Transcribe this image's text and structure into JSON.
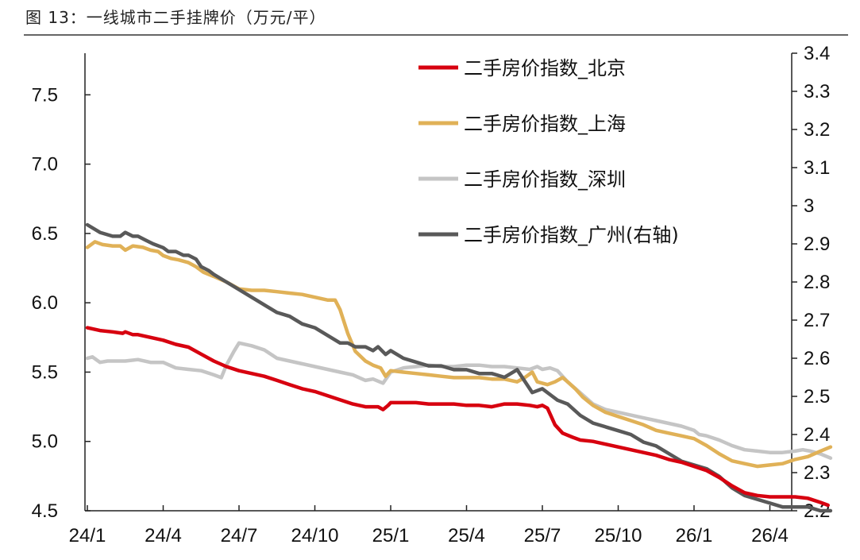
{
  "caption": "图 13：一线城市二手挂牌价（万元/平）",
  "chart_data": {
    "type": "line",
    "title": "图 13：一线城市二手挂牌价（万元/平）",
    "x_ticks": [
      "24/1",
      "24/4",
      "24/7",
      "24/10",
      "25/1",
      "25/4",
      "25/7",
      "25/10",
      "26/1",
      "26/4"
    ],
    "x_range": [
      0,
      28
    ],
    "y_left_range": [
      4.5,
      7.8
    ],
    "y_left_ticks": [
      "4.5",
      "5.0",
      "5.5",
      "6.0",
      "6.5",
      "7.0",
      "7.5"
    ],
    "y_right_range": [
      2.2,
      3.4
    ],
    "y_right_ticks": [
      "2.2",
      "2.3",
      "2.4",
      "2.5",
      "2.6",
      "2.7",
      "2.8",
      "2.9",
      "3",
      "3.1",
      "3.2",
      "3.3",
      "3.4"
    ],
    "legend_position": "top-right",
    "series": [
      {
        "name": "二手房价指数_北京",
        "axis": "left",
        "color": "#d7000f",
        "points": [
          [
            0,
            5.82
          ],
          [
            0.5,
            5.8
          ],
          [
            1,
            5.79
          ],
          [
            1.4,
            5.78
          ],
          [
            1.5,
            5.79
          ],
          [
            1.8,
            5.77
          ],
          [
            2,
            5.77
          ],
          [
            2.5,
            5.75
          ],
          [
            3,
            5.73
          ],
          [
            3.5,
            5.7
          ],
          [
            4,
            5.68
          ],
          [
            4.5,
            5.63
          ],
          [
            5,
            5.58
          ],
          [
            5.5,
            5.54
          ],
          [
            6,
            5.51
          ],
          [
            6.5,
            5.49
          ],
          [
            7,
            5.47
          ],
          [
            7.5,
            5.44
          ],
          [
            8,
            5.41
          ],
          [
            8.5,
            5.38
          ],
          [
            9,
            5.36
          ],
          [
            9.5,
            5.33
          ],
          [
            10,
            5.3
          ],
          [
            10.5,
            5.27
          ],
          [
            11,
            5.25
          ],
          [
            11.5,
            5.25
          ],
          [
            11.7,
            5.23
          ],
          [
            11.9,
            5.26
          ],
          [
            12,
            5.28
          ],
          [
            12.5,
            5.28
          ],
          [
            13,
            5.28
          ],
          [
            13.5,
            5.27
          ],
          [
            14,
            5.27
          ],
          [
            14.5,
            5.27
          ],
          [
            15,
            5.26
          ],
          [
            15.5,
            5.26
          ],
          [
            16,
            5.25
          ],
          [
            16.5,
            5.27
          ],
          [
            17,
            5.27
          ],
          [
            17.5,
            5.26
          ],
          [
            17.8,
            5.25
          ],
          [
            18,
            5.26
          ],
          [
            18.2,
            5.24
          ],
          [
            18.5,
            5.12
          ],
          [
            18.8,
            5.06
          ],
          [
            19.2,
            5.03
          ],
          [
            19.5,
            5.01
          ],
          [
            20,
            5.0
          ],
          [
            20.5,
            4.98
          ],
          [
            21,
            4.96
          ],
          [
            21.5,
            4.94
          ],
          [
            22,
            4.92
          ],
          [
            22.5,
            4.9
          ],
          [
            23,
            4.87
          ],
          [
            23.5,
            4.85
          ],
          [
            24,
            4.82
          ],
          [
            24.5,
            4.79
          ],
          [
            25,
            4.74
          ],
          [
            25.5,
            4.68
          ],
          [
            26,
            4.63
          ],
          [
            26.5,
            4.61
          ],
          [
            27,
            4.6
          ],
          [
            27.5,
            4.6
          ],
          [
            28,
            4.6
          ],
          [
            28.5,
            4.59
          ],
          [
            29,
            4.56
          ],
          [
            29.3,
            4.54
          ]
        ]
      },
      {
        "name": "二手房价指数_上海",
        "axis": "left",
        "color": "#e0b157",
        "points": [
          [
            0,
            6.4
          ],
          [
            0.3,
            6.44
          ],
          [
            0.6,
            6.42
          ],
          [
            1,
            6.41
          ],
          [
            1.3,
            6.41
          ],
          [
            1.5,
            6.38
          ],
          [
            1.8,
            6.41
          ],
          [
            2.2,
            6.4
          ],
          [
            2.5,
            6.38
          ],
          [
            2.8,
            6.37
          ],
          [
            3,
            6.34
          ],
          [
            3.3,
            6.32
          ],
          [
            3.6,
            6.31
          ],
          [
            4,
            6.29
          ],
          [
            4.3,
            6.26
          ],
          [
            4.6,
            6.22
          ],
          [
            5,
            6.19
          ],
          [
            5.5,
            6.15
          ],
          [
            6,
            6.1
          ],
          [
            6.5,
            6.09
          ],
          [
            7,
            6.09
          ],
          [
            7.5,
            6.08
          ],
          [
            8,
            6.07
          ],
          [
            8.5,
            6.06
          ],
          [
            9,
            6.04
          ],
          [
            9.5,
            6.02
          ],
          [
            9.8,
            6.02
          ],
          [
            10,
            5.95
          ],
          [
            10.3,
            5.78
          ],
          [
            10.6,
            5.65
          ],
          [
            11,
            5.58
          ],
          [
            11.3,
            5.55
          ],
          [
            11.6,
            5.53
          ],
          [
            11.8,
            5.47
          ],
          [
            12,
            5.51
          ],
          [
            12.5,
            5.5
          ],
          [
            13,
            5.49
          ],
          [
            13.5,
            5.48
          ],
          [
            14,
            5.47
          ],
          [
            14.5,
            5.46
          ],
          [
            15,
            5.46
          ],
          [
            15.5,
            5.46
          ],
          [
            16,
            5.45
          ],
          [
            16.5,
            5.45
          ],
          [
            17,
            5.43
          ],
          [
            17.3,
            5.46
          ],
          [
            17.6,
            5.5
          ],
          [
            17.8,
            5.43
          ],
          [
            18.2,
            5.41
          ],
          [
            18.5,
            5.43
          ],
          [
            18.8,
            5.46
          ],
          [
            19,
            5.43
          ],
          [
            19.3,
            5.38
          ],
          [
            19.6,
            5.32
          ],
          [
            20,
            5.26
          ],
          [
            20.5,
            5.21
          ],
          [
            21,
            5.18
          ],
          [
            21.5,
            5.15
          ],
          [
            22,
            5.12
          ],
          [
            22.5,
            5.08
          ],
          [
            23,
            5.06
          ],
          [
            23.5,
            5.04
          ],
          [
            24,
            5.02
          ],
          [
            24.5,
            4.97
          ],
          [
            25,
            4.91
          ],
          [
            25.5,
            4.86
          ],
          [
            26,
            4.84
          ],
          [
            26.5,
            4.82
          ],
          [
            27,
            4.83
          ],
          [
            27.5,
            4.84
          ],
          [
            28,
            4.87
          ],
          [
            28.5,
            4.89
          ],
          [
            29,
            4.93
          ],
          [
            29.4,
            4.96
          ]
        ]
      },
      {
        "name": "二手房价指数_深圳",
        "axis": "left",
        "color": "#c5c5c5",
        "points": [
          [
            0,
            5.6
          ],
          [
            0.2,
            5.61
          ],
          [
            0.5,
            5.57
          ],
          [
            0.8,
            5.58
          ],
          [
            1,
            5.58
          ],
          [
            1.5,
            5.58
          ],
          [
            2,
            5.59
          ],
          [
            2.5,
            5.57
          ],
          [
            3,
            5.57
          ],
          [
            3.5,
            5.53
          ],
          [
            4,
            5.52
          ],
          [
            4.5,
            5.51
          ],
          [
            5,
            5.48
          ],
          [
            5.3,
            5.46
          ],
          [
            5.5,
            5.55
          ],
          [
            5.8,
            5.65
          ],
          [
            6,
            5.71
          ],
          [
            6.5,
            5.69
          ],
          [
            7,
            5.66
          ],
          [
            7.5,
            5.6
          ],
          [
            8,
            5.58
          ],
          [
            8.5,
            5.56
          ],
          [
            9,
            5.54
          ],
          [
            9.5,
            5.52
          ],
          [
            10,
            5.5
          ],
          [
            10.5,
            5.48
          ],
          [
            11,
            5.44
          ],
          [
            11.3,
            5.45
          ],
          [
            11.7,
            5.42
          ],
          [
            12,
            5.5
          ],
          [
            12.5,
            5.53
          ],
          [
            13,
            5.54
          ],
          [
            13.5,
            5.55
          ],
          [
            14,
            5.54
          ],
          [
            14.5,
            5.54
          ],
          [
            15,
            5.55
          ],
          [
            15.5,
            5.55
          ],
          [
            16,
            5.54
          ],
          [
            16.5,
            5.54
          ],
          [
            17,
            5.53
          ],
          [
            17.5,
            5.52
          ],
          [
            17.8,
            5.54
          ],
          [
            18,
            5.52
          ],
          [
            18.3,
            5.53
          ],
          [
            18.6,
            5.51
          ],
          [
            19,
            5.43
          ],
          [
            19.5,
            5.35
          ],
          [
            20,
            5.27
          ],
          [
            20.5,
            5.23
          ],
          [
            21,
            5.21
          ],
          [
            21.5,
            5.19
          ],
          [
            22,
            5.17
          ],
          [
            22.5,
            5.15
          ],
          [
            23,
            5.13
          ],
          [
            23.5,
            5.11
          ],
          [
            24,
            5.08
          ],
          [
            24.2,
            5.05
          ],
          [
            24.5,
            5.04
          ],
          [
            25,
            5.01
          ],
          [
            25.5,
            4.97
          ],
          [
            26,
            4.94
          ],
          [
            26.5,
            4.93
          ],
          [
            27,
            4.92
          ],
          [
            27.5,
            4.92
          ],
          [
            28,
            4.93
          ],
          [
            28.3,
            4.94
          ],
          [
            28.6,
            4.93
          ],
          [
            29,
            4.91
          ],
          [
            29.4,
            4.88
          ]
        ]
      },
      {
        "name": "二手房价指数_广州(右轴)",
        "axis": "right",
        "color": "#595959",
        "points": [
          [
            0,
            2.95
          ],
          [
            0.5,
            2.93
          ],
          [
            1,
            2.92
          ],
          [
            1.3,
            2.92
          ],
          [
            1.5,
            2.93
          ],
          [
            1.8,
            2.92
          ],
          [
            2,
            2.92
          ],
          [
            2.3,
            2.91
          ],
          [
            2.6,
            2.9
          ],
          [
            3,
            2.89
          ],
          [
            3.2,
            2.88
          ],
          [
            3.5,
            2.88
          ],
          [
            3.8,
            2.87
          ],
          [
            4,
            2.87
          ],
          [
            4.3,
            2.86
          ],
          [
            4.5,
            2.84
          ],
          [
            4.8,
            2.83
          ],
          [
            5,
            2.82
          ],
          [
            5.5,
            2.8
          ],
          [
            6,
            2.78
          ],
          [
            6.5,
            2.76
          ],
          [
            7,
            2.74
          ],
          [
            7.5,
            2.72
          ],
          [
            8,
            2.71
          ],
          [
            8.5,
            2.69
          ],
          [
            9,
            2.68
          ],
          [
            9.5,
            2.66
          ],
          [
            10,
            2.64
          ],
          [
            10.3,
            2.64
          ],
          [
            10.6,
            2.63
          ],
          [
            11,
            2.63
          ],
          [
            11.3,
            2.62
          ],
          [
            11.5,
            2.63
          ],
          [
            11.8,
            2.61
          ],
          [
            12,
            2.62
          ],
          [
            12.5,
            2.6
          ],
          [
            13,
            2.59
          ],
          [
            13.5,
            2.58
          ],
          [
            14,
            2.58
          ],
          [
            14.5,
            2.57
          ],
          [
            15,
            2.57
          ],
          [
            15.5,
            2.56
          ],
          [
            16,
            2.56
          ],
          [
            16.5,
            2.55
          ],
          [
            17,
            2.57
          ],
          [
            17.3,
            2.54
          ],
          [
            17.6,
            2.51
          ],
          [
            18,
            2.52
          ],
          [
            18.4,
            2.5
          ],
          [
            18.6,
            2.49
          ],
          [
            19,
            2.48
          ],
          [
            19.5,
            2.45
          ],
          [
            20,
            2.43
          ],
          [
            20.5,
            2.42
          ],
          [
            21,
            2.41
          ],
          [
            21.5,
            2.4
          ],
          [
            22,
            2.38
          ],
          [
            22.5,
            2.37
          ],
          [
            23,
            2.35
          ],
          [
            23.5,
            2.33
          ],
          [
            24,
            2.32
          ],
          [
            24.5,
            2.31
          ],
          [
            25,
            2.29
          ],
          [
            25.5,
            2.26
          ],
          [
            26,
            2.24
          ],
          [
            26.5,
            2.23
          ],
          [
            27,
            2.22
          ],
          [
            27.5,
            2.21
          ],
          [
            28,
            2.21
          ],
          [
            28.5,
            2.21
          ],
          [
            29,
            2.2
          ],
          [
            29.4,
            2.2
          ]
        ]
      }
    ]
  }
}
